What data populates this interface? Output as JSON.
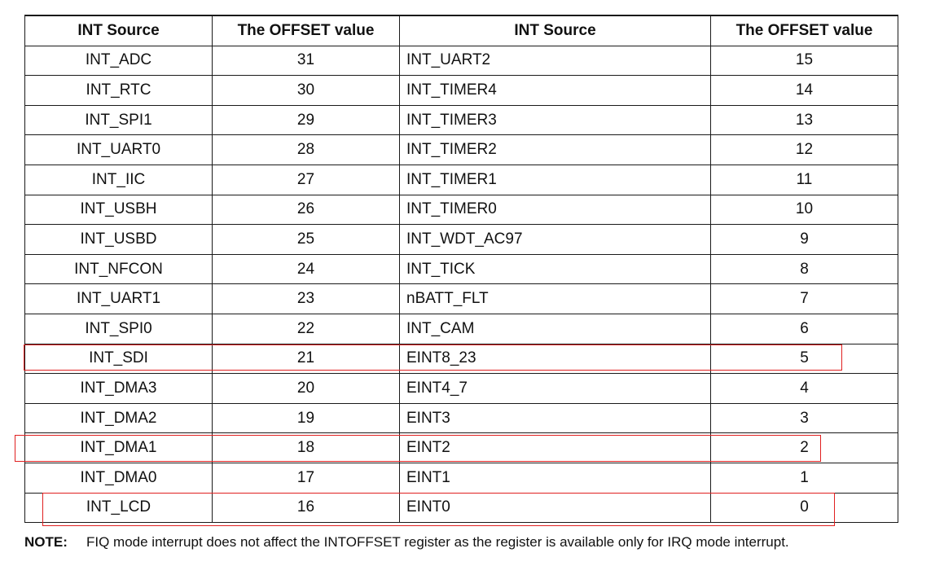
{
  "table": {
    "headers": [
      "INT Source",
      "The OFFSET value",
      "INT Source",
      "The OFFSET value"
    ],
    "rows": [
      [
        "INT_ADC",
        "31",
        "INT_UART2",
        "15"
      ],
      [
        "INT_RTC",
        "30",
        "INT_TIMER4",
        "14"
      ],
      [
        "INT_SPI1",
        "29",
        "INT_TIMER3",
        "13"
      ],
      [
        "INT_UART0",
        "28",
        "INT_TIMER2",
        "12"
      ],
      [
        "INT_IIC",
        "27",
        "INT_TIMER1",
        "11"
      ],
      [
        "INT_USBH",
        "26",
        "INT_TIMER0",
        "10"
      ],
      [
        "INT_USBD",
        "25",
        "INT_WDT_AC97",
        "9"
      ],
      [
        "INT_NFCON",
        "24",
        "INT_TICK",
        "8"
      ],
      [
        "INT_UART1",
        "23",
        "nBATT_FLT",
        "7"
      ],
      [
        "INT_SPI0",
        "22",
        "INT_CAM",
        "6"
      ],
      [
        "INT_SDI",
        "21",
        "EINT8_23",
        "5"
      ],
      [
        "INT_DMA3",
        "20",
        "EINT4_7",
        "4"
      ],
      [
        "INT_DMA2",
        "19",
        "EINT3",
        "3"
      ],
      [
        "INT_DMA1",
        "18",
        "EINT2",
        "2"
      ],
      [
        "INT_DMA0",
        "17",
        "EINT1",
        "1"
      ],
      [
        "INT_LCD",
        "16",
        "EINT0",
        "0"
      ]
    ]
  },
  "highlight_color": "#e02020",
  "highlighted_rows": [
    "INT_SDI",
    "INT_DMA1",
    "INT_LCD"
  ],
  "note": {
    "label": "NOTE:",
    "text": "FIQ mode interrupt does not affect the INTOFFSET register as the register is available only for IRQ mode interrupt."
  }
}
